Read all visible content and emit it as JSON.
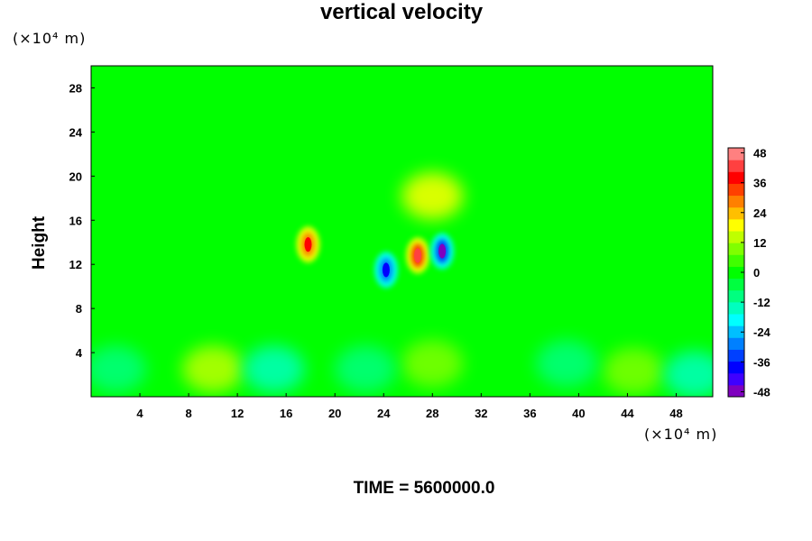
{
  "chart_data": {
    "type": "heatmap",
    "title": "vertical velocity",
    "ylabel": "Height",
    "xlabel": "",
    "y_unit": "(×10⁴ m)",
    "x_unit": "(×10⁴ m)",
    "xlim": [
      0,
      51
    ],
    "ylim": [
      0,
      30
    ],
    "x_ticks": [
      "4",
      "8",
      "12",
      "16",
      "20",
      "24",
      "28",
      "32",
      "36",
      "40",
      "44",
      "48"
    ],
    "y_ticks": [
      "4",
      "8",
      "12",
      "16",
      "20",
      "24",
      "28"
    ],
    "colorbar": {
      "min": -50,
      "max": 50,
      "ticks": [
        "48",
        "36",
        "24",
        "12",
        "0",
        "-12",
        "-24",
        "-36",
        "-48"
      ],
      "colors": [
        "#7f00bf",
        "#3f00ff",
        "#0000ff",
        "#0040ff",
        "#0080ff",
        "#00bfff",
        "#00ffff",
        "#00ffbf",
        "#00ff80",
        "#00ff40",
        "#00ff00",
        "#40ff00",
        "#80ff00",
        "#bfff00",
        "#ffff00",
        "#ffbf00",
        "#ff8000",
        "#ff4000",
        "#ff0000",
        "#ff4040",
        "#ff8080"
      ]
    },
    "features": [
      {
        "x": 17.8,
        "y": 13.8,
        "value": 40
      },
      {
        "x": 24.2,
        "y": 11.5,
        "value": -40
      },
      {
        "x": 26.8,
        "y": 12.8,
        "value": 45
      },
      {
        "x": 28.8,
        "y": 13.2,
        "value": -48
      },
      {
        "x": 28.0,
        "y": 18.2,
        "value": 22
      },
      {
        "x": 10.0,
        "y": 2.5,
        "value": 14
      },
      {
        "x": 28.0,
        "y": 3.0,
        "value": 10
      },
      {
        "x": 44.5,
        "y": 2.3,
        "value": 12
      },
      {
        "x": 2.0,
        "y": 2.5,
        "value": -12
      },
      {
        "x": 15.0,
        "y": 2.5,
        "value": -14
      },
      {
        "x": 22.5,
        "y": 2.5,
        "value": -12
      },
      {
        "x": 39.0,
        "y": 3.0,
        "value": -10
      },
      {
        "x": 49.5,
        "y": 2.0,
        "value": -14
      }
    ],
    "annotation": "TIME = 5600000.0"
  }
}
